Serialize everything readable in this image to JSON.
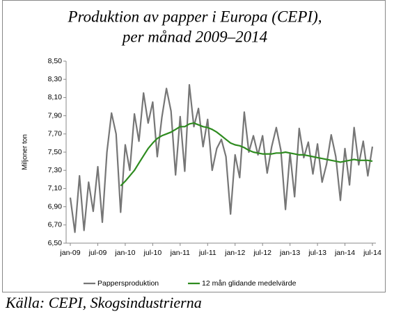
{
  "chart_data": {
    "type": "line",
    "title": [
      "Produktion av papper i Europa (CEPI),",
      "per månad 2009–2014"
    ],
    "ylabel": "Miljoner ton",
    "source": "Källa: CEPI, Skogsindustrierna",
    "categories": [
      "jan-09",
      null,
      null,
      null,
      null,
      null,
      "jul-09",
      null,
      null,
      null,
      null,
      null,
      "jan-10",
      null,
      null,
      null,
      null,
      null,
      "jul-10",
      null,
      null,
      null,
      null,
      null,
      "jan-11",
      null,
      null,
      null,
      null,
      null,
      "jul-11",
      null,
      null,
      null,
      null,
      null,
      "jan-12",
      null,
      null,
      null,
      null,
      null,
      "jul-12",
      null,
      null,
      null,
      null,
      null,
      "jan-13",
      null,
      null,
      null,
      null,
      null,
      "jul-13",
      null,
      null,
      null,
      null,
      null,
      "jan-14",
      null,
      null,
      null,
      null,
      null,
      "jul-14"
    ],
    "series": [
      {
        "name": "Pappersproduktion",
        "color": "#767676",
        "values": [
          7.0,
          6.62,
          7.24,
          6.64,
          7.17,
          6.85,
          7.34,
          6.73,
          7.5,
          7.93,
          7.7,
          6.84,
          7.58,
          7.3,
          7.92,
          7.62,
          8.15,
          7.82,
          8.05,
          7.45,
          7.88,
          8.2,
          7.95,
          7.25,
          7.89,
          7.29,
          8.24,
          7.78,
          7.98,
          7.56,
          7.86,
          7.3,
          7.54,
          7.64,
          7.45,
          6.82,
          7.47,
          7.22,
          7.94,
          7.5,
          7.68,
          7.47,
          7.68,
          7.27,
          7.56,
          7.77,
          7.52,
          6.87,
          7.49,
          7.01,
          7.76,
          7.44,
          7.61,
          7.26,
          7.59,
          7.17,
          7.37,
          7.69,
          7.45,
          6.97,
          7.54,
          7.14,
          7.77,
          7.36,
          7.62,
          7.24,
          7.56
        ]
      },
      {
        "name": "12 mån glidande medelvärde",
        "color": "#2e8b1f",
        "values": [
          null,
          null,
          null,
          null,
          null,
          null,
          null,
          null,
          null,
          null,
          null,
          7.13,
          7.18,
          7.24,
          7.3,
          7.38,
          7.46,
          7.54,
          7.6,
          7.65,
          7.68,
          7.7,
          7.72,
          7.75,
          7.78,
          7.78,
          7.81,
          7.82,
          7.8,
          7.78,
          7.77,
          7.75,
          7.72,
          7.68,
          7.64,
          7.6,
          7.58,
          7.57,
          7.55,
          7.52,
          7.5,
          7.49,
          7.48,
          7.48,
          7.48,
          7.49,
          7.49,
          7.5,
          7.49,
          7.48,
          7.47,
          7.47,
          7.46,
          7.45,
          7.44,
          7.43,
          7.42,
          7.41,
          7.4,
          7.39,
          7.4,
          7.41,
          7.42,
          7.41,
          7.41,
          7.41,
          7.4
        ]
      }
    ],
    "ylim": [
      6.5,
      8.5
    ],
    "yticks": [
      {
        "value": 6.5,
        "label": "6,50"
      },
      {
        "value": 6.7,
        "label": "6,70"
      },
      {
        "value": 6.9,
        "label": "6,90"
      },
      {
        "value": 7.1,
        "label": "7,10"
      },
      {
        "value": 7.3,
        "label": "7,30"
      },
      {
        "value": 7.5,
        "label": "7,50"
      },
      {
        "value": 7.7,
        "label": "7,70"
      },
      {
        "value": 7.9,
        "label": "7,90"
      },
      {
        "value": 8.1,
        "label": "8,10"
      },
      {
        "value": 8.3,
        "label": "8,30"
      },
      {
        "value": 8.5,
        "label": "8,50"
      }
    ],
    "grid": false,
    "legend": "bottom"
  }
}
